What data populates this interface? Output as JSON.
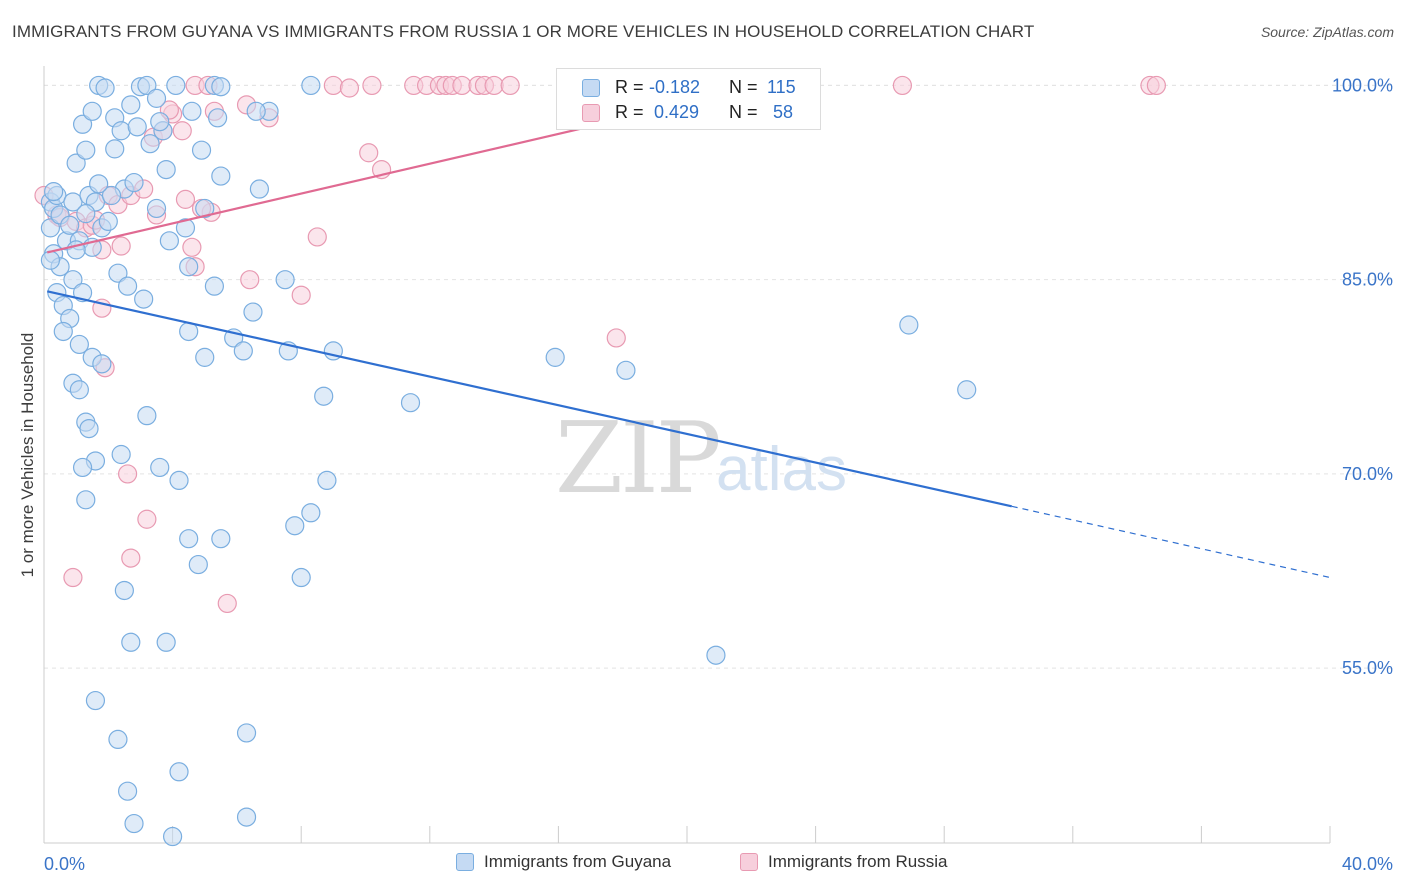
{
  "title": "IMMIGRANTS FROM GUYANA VS IMMIGRANTS FROM RUSSIA 1 OR MORE VEHICLES IN HOUSEHOLD CORRELATION CHART",
  "source": "Source: ZipAtlas.com",
  "watermark": {
    "zip": "ZIP",
    "atlas": "atlas"
  },
  "stats": [
    {
      "series": "Immigrants from Guyana",
      "r_label": "R =",
      "r_value": "-0.182",
      "n_label": "N =",
      "n_value": "115"
    },
    {
      "series": "Immigrants from Russia",
      "r_label": "R =",
      "r_value": "0.429",
      "n_label": "N =",
      "n_value": "58"
    }
  ],
  "chart_data": {
    "type": "scatter",
    "title": "IMMIGRANTS FROM GUYANA VS IMMIGRANTS FROM RUSSIA 1 OR MORE VEHICLES IN HOUSEHOLD CORRELATION CHART",
    "xlabel": "",
    "ylabel": "1 or more Vehicles in Household",
    "xlim": [
      0,
      40
    ],
    "ylim": [
      41.5,
      101.5
    ],
    "x_tick_labels": [
      "0.0%",
      "40.0%"
    ],
    "y_ticks": [
      55,
      70,
      85,
      100
    ],
    "y_tick_labels": [
      "55.0%",
      "70.0%",
      "85.0%",
      "100.0%"
    ],
    "grid": true,
    "legend_position": "bottom",
    "series": [
      {
        "name": "Immigrants from Guyana",
        "color": "#7aaee0",
        "fill": "#c5daf3",
        "trend_color": "#2f6fd0",
        "trend": {
          "x0": 0.1,
          "y0": 84.1,
          "x1": 30.1,
          "y1": 67.5,
          "dash_x1": 40.0,
          "dash_y1": 62.0
        },
        "points": [
          [
            0.2,
            91
          ],
          [
            0.3,
            90.5
          ],
          [
            0.4,
            91.5
          ],
          [
            0.2,
            89
          ],
          [
            0.3,
            87
          ],
          [
            0.5,
            86
          ],
          [
            0.2,
            86.5
          ],
          [
            0.4,
            84
          ],
          [
            0.6,
            83
          ],
          [
            0.8,
            82
          ],
          [
            0.5,
            90
          ],
          [
            0.7,
            88
          ],
          [
            0.9,
            91
          ],
          [
            1.0,
            94
          ],
          [
            1.2,
            97
          ],
          [
            1.3,
            95
          ],
          [
            1.5,
            98
          ],
          [
            1.7,
            100
          ],
          [
            1.9,
            99.8
          ],
          [
            2.2,
            97.5
          ],
          [
            2.4,
            96.5
          ],
          [
            2.7,
            98.5
          ],
          [
            3.0,
            99.9
          ],
          [
            3.2,
            100
          ],
          [
            3.5,
            99
          ],
          [
            3.7,
            96.5
          ],
          [
            1.4,
            91.5
          ],
          [
            1.6,
            91
          ],
          [
            1.8,
            89
          ],
          [
            2.5,
            92
          ],
          [
            2.8,
            92.5
          ],
          [
            3.3,
            95.5
          ],
          [
            3.8,
            93.5
          ],
          [
            4.1,
            100
          ],
          [
            5.3,
            100
          ],
          [
            1.1,
            88
          ],
          [
            1.5,
            87.5
          ],
          [
            2.3,
            85.5
          ],
          [
            2.6,
            84.5
          ],
          [
            3.1,
            83.5
          ],
          [
            0.9,
            85
          ],
          [
            1.2,
            84
          ],
          [
            0.6,
            81
          ],
          [
            1.1,
            80
          ],
          [
            1.5,
            79
          ],
          [
            1.8,
            78.5
          ],
          [
            0.9,
            77
          ],
          [
            1.1,
            76.5
          ],
          [
            1.3,
            74
          ],
          [
            1.4,
            73.5
          ],
          [
            1.6,
            71
          ],
          [
            1.2,
            70.5
          ],
          [
            1.3,
            68
          ],
          [
            2.4,
            71.5
          ],
          [
            3.2,
            74.5
          ],
          [
            3.6,
            70.5
          ],
          [
            4.2,
            69.5
          ],
          [
            4.5,
            65
          ],
          [
            4.8,
            63
          ],
          [
            5.5,
            65
          ],
          [
            2.5,
            61
          ],
          [
            2.7,
            57
          ],
          [
            3.8,
            57
          ],
          [
            1.6,
            52.5
          ],
          [
            2.3,
            49.5
          ],
          [
            2.6,
            45.5
          ],
          [
            2.8,
            43
          ],
          [
            4.2,
            47
          ],
          [
            4.0,
            42
          ],
          [
            6.3,
            50
          ],
          [
            6.3,
            43.5
          ],
          [
            4.5,
            86
          ],
          [
            5.0,
            90.5
          ],
          [
            5.5,
            93
          ],
          [
            5.3,
            84.5
          ],
          [
            5.9,
            80.5
          ],
          [
            6.2,
            79.5
          ],
          [
            4.5,
            81
          ],
          [
            5.0,
            79
          ],
          [
            6.5,
            82.5
          ],
          [
            6.7,
            92
          ],
          [
            7.0,
            98
          ],
          [
            7.5,
            85
          ],
          [
            7.6,
            79.5
          ],
          [
            8.3,
            100
          ],
          [
            8.7,
            76
          ],
          [
            9.0,
            79.5
          ],
          [
            8.8,
            69.5
          ],
          [
            8.3,
            67
          ],
          [
            7.8,
            66
          ],
          [
            8.0,
            62
          ],
          [
            4.9,
            95
          ],
          [
            4.6,
            98
          ],
          [
            5.4,
            97.5
          ],
          [
            3.5,
            90.5
          ],
          [
            6.6,
            98
          ],
          [
            4.4,
            89
          ],
          [
            3.9,
            88
          ],
          [
            2.1,
            91.5
          ],
          [
            2.0,
            89.5
          ],
          [
            15.9,
            79
          ],
          [
            11.4,
            75.5
          ],
          [
            18.1,
            78
          ],
          [
            20.9,
            56
          ],
          [
            28.7,
            76.5
          ],
          [
            26.9,
            81.5
          ],
          [
            0.3,
            91.8
          ],
          [
            0.8,
            89.2
          ],
          [
            1.0,
            87.3
          ],
          [
            1.3,
            90.1
          ],
          [
            1.7,
            92.4
          ],
          [
            2.2,
            95.1
          ],
          [
            2.9,
            96.8
          ],
          [
            3.6,
            97.2
          ],
          [
            5.5,
            99.9
          ]
        ]
      },
      {
        "name": "Immigrants from Russia",
        "color": "#e89ab2",
        "fill": "#f7cfdc",
        "trend_color": "#e06a92",
        "trend": {
          "x0": 0.1,
          "y0": 87.1,
          "x1": 22.5,
          "y1": 100.0
        },
        "points": [
          [
            0.0,
            91.5
          ],
          [
            0.4,
            90
          ],
          [
            0.5,
            89.8
          ],
          [
            1.0,
            89.5
          ],
          [
            1.3,
            89
          ],
          [
            1.5,
            89.2
          ],
          [
            1.8,
            87.3
          ],
          [
            2.0,
            91.5
          ],
          [
            2.3,
            90.8
          ],
          [
            2.7,
            91.5
          ],
          [
            3.1,
            92
          ],
          [
            3.5,
            90
          ],
          [
            3.4,
            96
          ],
          [
            3.7,
            96.5
          ],
          [
            4.0,
            97.8
          ],
          [
            4.3,
            96.5
          ],
          [
            4.4,
            91.2
          ],
          [
            4.7,
            100
          ],
          [
            5.1,
            100
          ],
          [
            5.3,
            98
          ],
          [
            4.6,
            87.5
          ],
          [
            5.2,
            90.2
          ],
          [
            4.7,
            86
          ],
          [
            6.3,
            98.5
          ],
          [
            6.4,
            85
          ],
          [
            7.0,
            97.5
          ],
          [
            8.0,
            83.8
          ],
          [
            8.5,
            88.3
          ],
          [
            9.0,
            100
          ],
          [
            9.5,
            99.8
          ],
          [
            10.2,
            100
          ],
          [
            10.1,
            94.8
          ],
          [
            10.5,
            93.5
          ],
          [
            11.5,
            100
          ],
          [
            11.9,
            100
          ],
          [
            12.3,
            100
          ],
          [
            12.5,
            100
          ],
          [
            12.7,
            100
          ],
          [
            13.0,
            100
          ],
          [
            13.5,
            100
          ],
          [
            13.7,
            100
          ],
          [
            14.0,
            100
          ],
          [
            14.5,
            100
          ],
          [
            17.8,
            80.5
          ],
          [
            2.6,
            70
          ],
          [
            3.2,
            66.5
          ],
          [
            2.7,
            63.5
          ],
          [
            0.9,
            62
          ],
          [
            5.7,
            60
          ],
          [
            1.9,
            78.2
          ],
          [
            1.8,
            82.8
          ],
          [
            1.6,
            89.6
          ],
          [
            2.4,
            87.6
          ],
          [
            26.7,
            100
          ],
          [
            34.4,
            100
          ],
          [
            34.6,
            100
          ],
          [
            3.9,
            98.1
          ],
          [
            4.9,
            90.5
          ]
        ]
      }
    ]
  }
}
